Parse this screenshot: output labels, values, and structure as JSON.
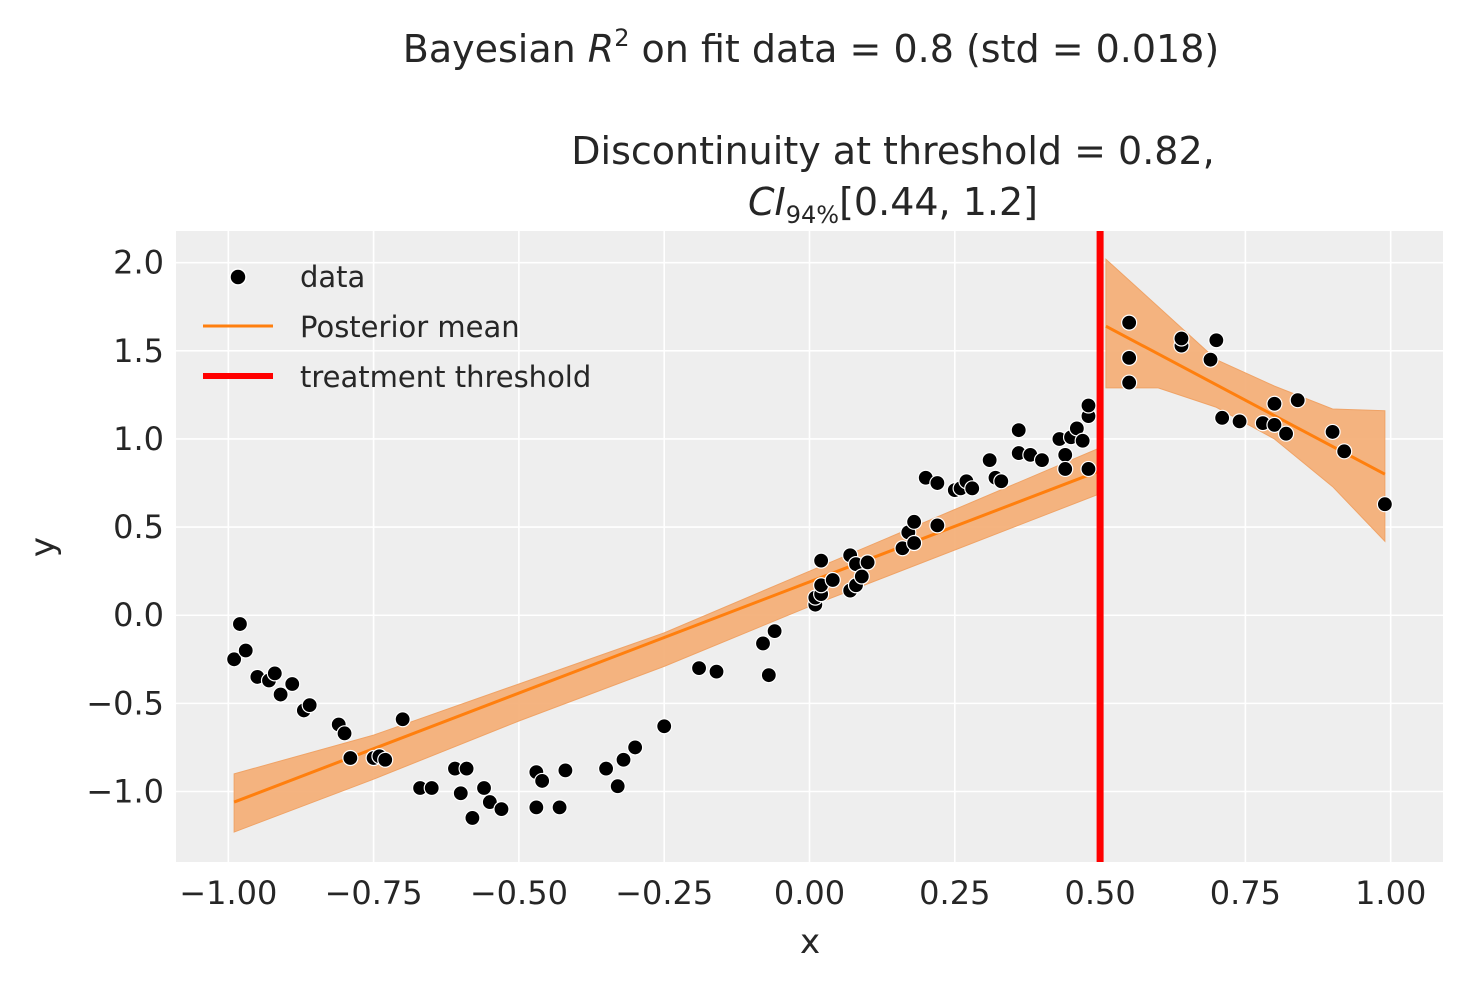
{
  "suptitle": {
    "prefix": "Bayesian ",
    "r_symbol": "R",
    "r_exponent": "2",
    "suffix": " on fit data = 0.8 (std = 0.018)"
  },
  "title": {
    "line1": "Discontinuity at threshold = 0.82,",
    "ci_symbol": "CI",
    "ci_subscript": "94%",
    "ci_range": "[0.44, 1.2]"
  },
  "chart_data": {
    "type": "scatter",
    "xlabel": "x",
    "ylabel": "y",
    "xlim": [
      -1.09,
      1.09
    ],
    "ylim": [
      -1.4,
      2.18
    ],
    "x_ticks": [
      -1.0,
      -0.75,
      -0.5,
      -0.25,
      0.0,
      0.25,
      0.5,
      0.75,
      1.0
    ],
    "x_tick_labels": [
      "−1.00",
      "−0.75",
      "−0.50",
      "−0.25",
      "0.00",
      "0.25",
      "0.50",
      "0.75",
      "1.00"
    ],
    "y_ticks": [
      -1.0,
      -0.5,
      0.0,
      0.5,
      1.0,
      1.5,
      2.0
    ],
    "y_tick_labels": [
      "−1.0",
      "−0.5",
      "0.0",
      "0.5",
      "1.0",
      "1.5",
      "2.0"
    ],
    "grid": true,
    "legend_position": "upper-left",
    "legend": [
      "data",
      "Posterior mean",
      "treatment threshold"
    ],
    "colors": {
      "background": "#eeeeee",
      "grid": "#ffffff",
      "data": "#000000",
      "posterior_mean": "#ff7f0e",
      "hdi_band": "#f5b07a",
      "threshold": "#ff0000"
    },
    "threshold": 0.5,
    "data_points": [
      [
        -0.99,
        -0.25
      ],
      [
        -0.98,
        -0.05
      ],
      [
        -0.97,
        -0.2
      ],
      [
        -0.95,
        -0.35
      ],
      [
        -0.93,
        -0.37
      ],
      [
        -0.92,
        -0.33
      ],
      [
        -0.91,
        -0.45
      ],
      [
        -0.89,
        -0.39
      ],
      [
        -0.87,
        -0.54
      ],
      [
        -0.86,
        -0.51
      ],
      [
        -0.81,
        -0.62
      ],
      [
        -0.8,
        -0.67
      ],
      [
        -0.79,
        -0.81
      ],
      [
        -0.75,
        -0.81
      ],
      [
        -0.74,
        -0.8
      ],
      [
        -0.73,
        -0.82
      ],
      [
        -0.7,
        -0.59
      ],
      [
        -0.67,
        -0.98
      ],
      [
        -0.65,
        -0.98
      ],
      [
        -0.61,
        -0.87
      ],
      [
        -0.6,
        -1.01
      ],
      [
        -0.59,
        -0.87
      ],
      [
        -0.58,
        -1.15
      ],
      [
        -0.56,
        -0.98
      ],
      [
        -0.55,
        -1.06
      ],
      [
        -0.53,
        -1.1
      ],
      [
        -0.47,
        -0.89
      ],
      [
        -0.47,
        -1.09
      ],
      [
        -0.46,
        -0.94
      ],
      [
        -0.43,
        -1.09
      ],
      [
        -0.42,
        -0.88
      ],
      [
        -0.35,
        -0.87
      ],
      [
        -0.33,
        -0.97
      ],
      [
        -0.32,
        -0.82
      ],
      [
        -0.3,
        -0.75
      ],
      [
        -0.25,
        -0.63
      ],
      [
        -0.19,
        -0.3
      ],
      [
        -0.16,
        -0.32
      ],
      [
        -0.08,
        -0.16
      ],
      [
        -0.07,
        -0.34
      ],
      [
        -0.06,
        -0.09
      ],
      [
        0.01,
        0.06
      ],
      [
        0.01,
        0.1
      ],
      [
        0.02,
        0.31
      ],
      [
        0.02,
        0.12
      ],
      [
        0.02,
        0.17
      ],
      [
        0.04,
        0.2
      ],
      [
        0.07,
        0.14
      ],
      [
        0.07,
        0.34
      ],
      [
        0.08,
        0.29
      ],
      [
        0.08,
        0.17
      ],
      [
        0.09,
        0.22
      ],
      [
        0.1,
        0.3
      ],
      [
        0.16,
        0.38
      ],
      [
        0.17,
        0.47
      ],
      [
        0.18,
        0.53
      ],
      [
        0.18,
        0.41
      ],
      [
        0.2,
        0.78
      ],
      [
        0.22,
        0.51
      ],
      [
        0.22,
        0.75
      ],
      [
        0.25,
        0.71
      ],
      [
        0.26,
        0.72
      ],
      [
        0.27,
        0.76
      ],
      [
        0.28,
        0.72
      ],
      [
        0.31,
        0.88
      ],
      [
        0.32,
        0.78
      ],
      [
        0.33,
        0.76
      ],
      [
        0.36,
        1.05
      ],
      [
        0.36,
        0.92
      ],
      [
        0.38,
        0.91
      ],
      [
        0.4,
        0.88
      ],
      [
        0.43,
        1.0
      ],
      [
        0.44,
        0.91
      ],
      [
        0.44,
        0.83
      ],
      [
        0.45,
        1.01
      ],
      [
        0.46,
        1.06
      ],
      [
        0.47,
        0.99
      ],
      [
        0.48,
        1.13
      ],
      [
        0.48,
        1.19
      ],
      [
        0.48,
        0.83
      ],
      [
        0.55,
        1.66
      ],
      [
        0.55,
        1.46
      ],
      [
        0.55,
        1.32
      ],
      [
        0.64,
        1.53
      ],
      [
        0.64,
        1.57
      ],
      [
        0.69,
        1.45
      ],
      [
        0.7,
        1.56
      ],
      [
        0.71,
        1.12
      ],
      [
        0.74,
        1.1
      ],
      [
        0.78,
        1.09
      ],
      [
        0.8,
        1.2
      ],
      [
        0.8,
        1.08
      ],
      [
        0.82,
        1.03
      ],
      [
        0.84,
        1.22
      ],
      [
        0.9,
        1.04
      ],
      [
        0.92,
        0.93
      ],
      [
        0.99,
        0.63
      ]
    ],
    "posterior_mean_segments": [
      {
        "x": [
          -0.99,
          0.5
        ],
        "y": [
          -1.06,
          0.82
        ]
      },
      {
        "x": [
          0.51,
          0.99
        ],
        "y": [
          1.64,
          0.8
        ]
      }
    ],
    "hdi_94": [
      {
        "x": [
          -0.99,
          -0.75,
          -0.5,
          -0.25,
          0.0,
          0.25,
          0.5
        ],
        "lower": [
          -1.23,
          -0.93,
          -0.6,
          -0.29,
          0.05,
          0.37,
          0.69
        ],
        "upper": [
          -0.9,
          -0.68,
          -0.39,
          -0.1,
          0.25,
          0.6,
          0.95
        ]
      },
      {
        "x": [
          0.51,
          0.6,
          0.7,
          0.8,
          0.9,
          0.99
        ],
        "lower": [
          1.29,
          1.29,
          1.18,
          1.0,
          0.73,
          0.42
        ],
        "upper": [
          2.02,
          1.75,
          1.45,
          1.3,
          1.17,
          1.16
        ]
      }
    ]
  }
}
